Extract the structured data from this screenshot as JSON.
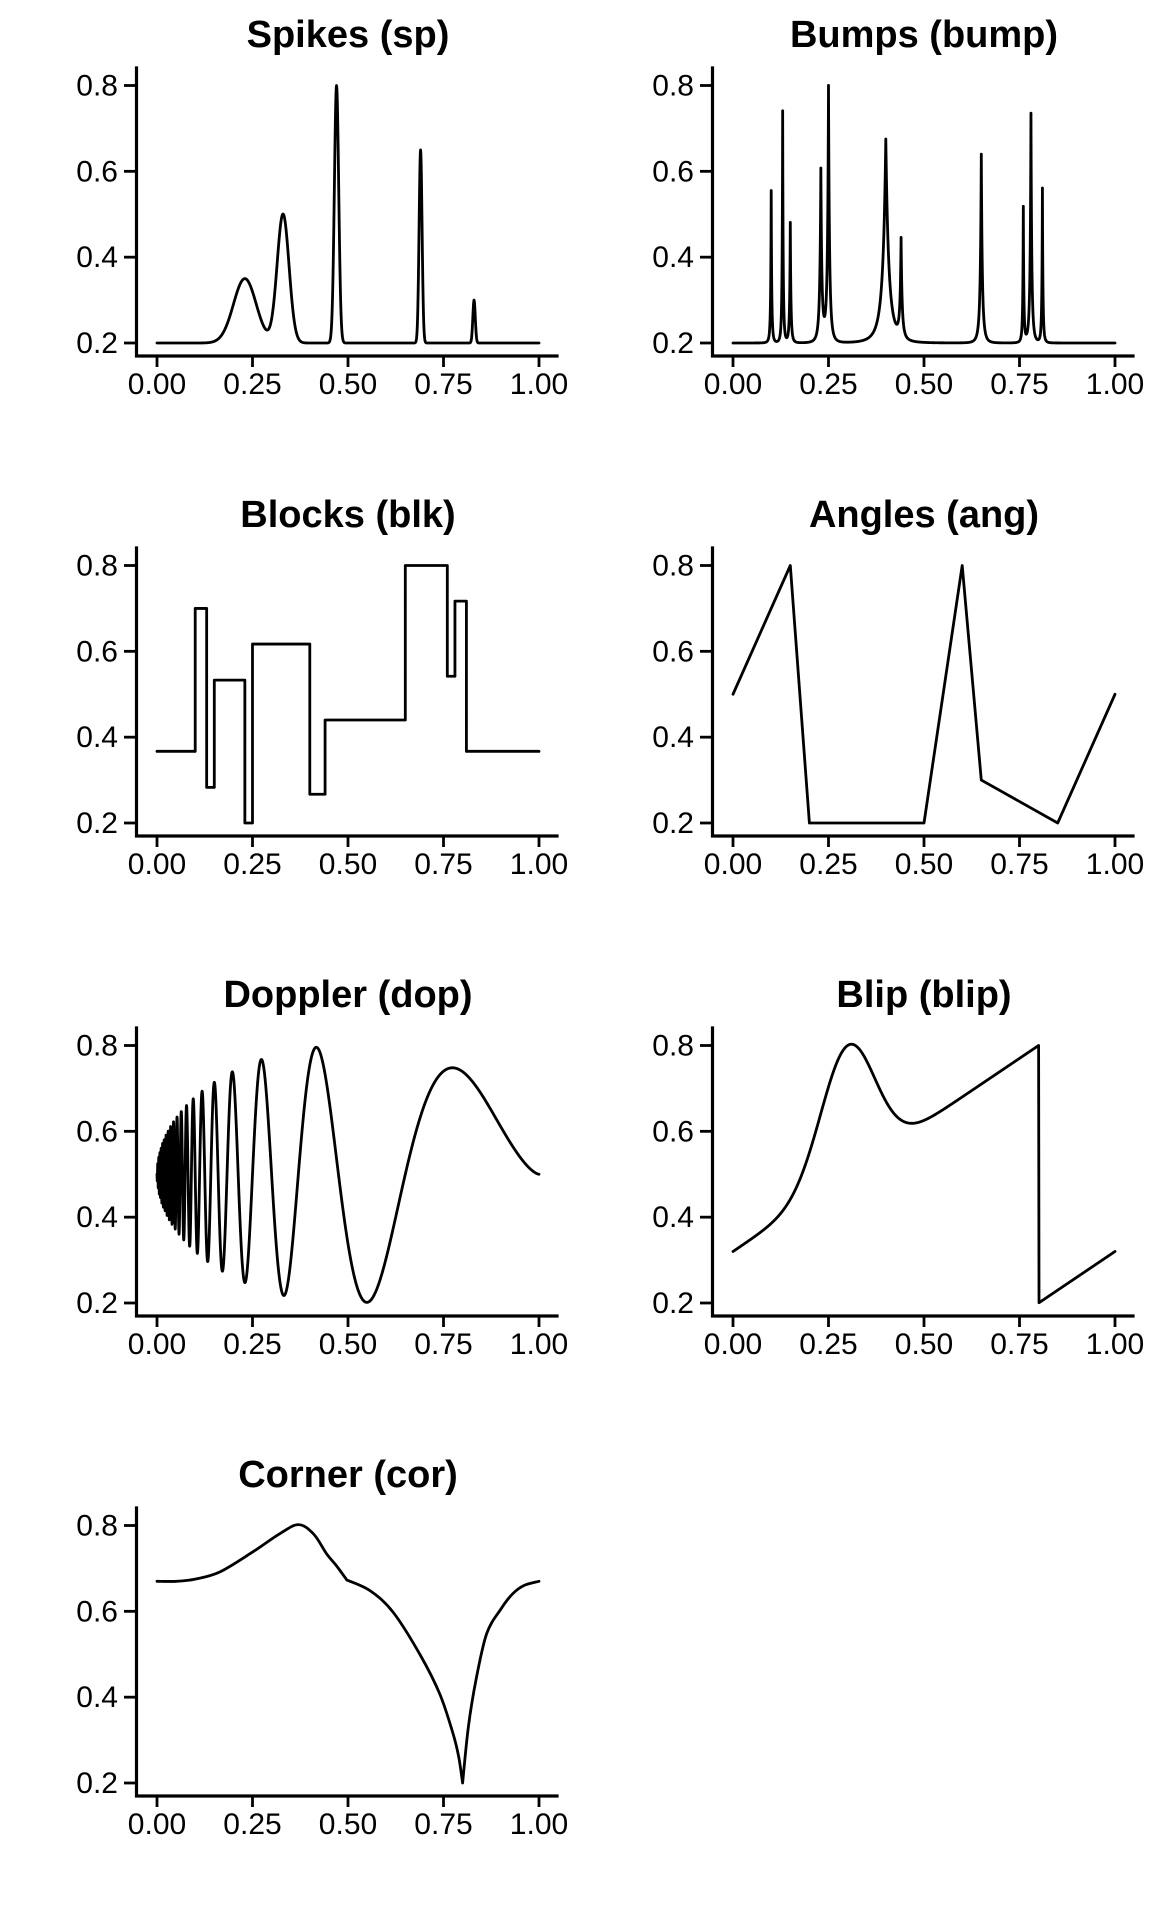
{
  "page": {
    "background": "#ffffff",
    "line_color": "#000000",
    "text_color": "#000000"
  },
  "axis": {
    "x_tick_labels": [
      "0.00",
      "0.25",
      "0.50",
      "0.75",
      "1.00"
    ],
    "x_tick_values": [
      0,
      0.25,
      0.5,
      0.75,
      1
    ],
    "y_tick_labels": [
      "0.2",
      "0.4",
      "0.6",
      "0.8"
    ],
    "y_tick_values": [
      0.2,
      0.4,
      0.6,
      0.8
    ],
    "xlim": [
      0,
      1
    ],
    "ylim": [
      0.2,
      0.8
    ],
    "grid": false,
    "legend": false
  },
  "chart_data": [
    {
      "type": "line",
      "title": "Spikes (sp)",
      "code": "sp",
      "generator": "gaussian_peaks",
      "baseline": 0.2,
      "centers": [
        0.23,
        0.33,
        0.47,
        0.69,
        0.83
      ],
      "amplitudes": [
        0.15,
        0.3,
        0.6,
        0.45,
        0.1
      ],
      "widths": [
        0.042,
        0.022,
        0.008,
        0.0055,
        0.0045
      ],
      "samples": 1400,
      "xlim": [
        0,
        1
      ],
      "ylim": [
        0.2,
        0.8
      ]
    },
    {
      "type": "line",
      "title": "Bumps (bump)",
      "code": "bump",
      "generator": "bump_peaks",
      "kernel_power": -4,
      "baseline": 0.2,
      "centers": [
        0.1,
        0.13,
        0.15,
        0.23,
        0.25,
        0.4,
        0.44,
        0.65,
        0.76,
        0.78,
        0.81
      ],
      "amplitudes": [
        0.355,
        0.54,
        0.28,
        0.4,
        0.595,
        0.475,
        0.23,
        0.44,
        0.315,
        0.535,
        0.36
      ],
      "widths": [
        0.005,
        0.005,
        0.006,
        0.01,
        0.01,
        0.03,
        0.01,
        0.01,
        0.005,
        0.008,
        0.005
      ],
      "samples": 2200,
      "xlim": [
        0,
        1
      ],
      "ylim": [
        0.2,
        0.8
      ]
    },
    {
      "type": "step",
      "title": "Blocks (blk)",
      "code": "blk",
      "generator": "steps",
      "boundaries": [
        0,
        0.1,
        0.13,
        0.15,
        0.23,
        0.25,
        0.4,
        0.44,
        0.65,
        0.76,
        0.78,
        0.81,
        1.0
      ],
      "levels": [
        0.367,
        0.7,
        0.283,
        0.533,
        0.2,
        0.617,
        0.267,
        0.44,
        0.8,
        0.542,
        0.717,
        0.367
      ],
      "xlim": [
        0,
        1
      ],
      "ylim": [
        0.2,
        0.8
      ]
    },
    {
      "type": "line",
      "title": "Angles (ang)",
      "code": "ang",
      "generator": "polyline",
      "points": [
        [
          0,
          0.5
        ],
        [
          0.15,
          0.8
        ],
        [
          0.2,
          0.2
        ],
        [
          0.5,
          0.2
        ],
        [
          0.6,
          0.8
        ],
        [
          0.65,
          0.3
        ],
        [
          0.85,
          0.2
        ],
        [
          1,
          0.5
        ]
      ],
      "xlim": [
        0,
        1
      ],
      "ylim": [
        0.2,
        0.8
      ]
    },
    {
      "type": "line",
      "title": "Doppler (dop)",
      "code": "dop",
      "generator": "doppler",
      "base": 0.5,
      "amp": 0.6,
      "eps": 0.05,
      "samples": 3000,
      "xlim": [
        0,
        1
      ],
      "ylim": [
        0.2,
        0.8
      ]
    },
    {
      "type": "line",
      "title": "Blip (blip)",
      "code": "blip",
      "generator": "blip",
      "intercept_left": 0.32,
      "intercept_right": -0.28,
      "slope": 0.6,
      "bump_amp": 0.3,
      "bump_center_left": 0.3,
      "bump_center_right": 1.3,
      "bump_decay": 100,
      "breakpoint": 0.8,
      "samples": 900,
      "xlim": [
        0,
        1
      ],
      "ylim": [
        0.2,
        0.8
      ]
    },
    {
      "type": "line",
      "title": "Corner (cor)",
      "code": "cor",
      "generator": "smooth_segments",
      "segments": [
        [
          [
            0,
            0.67
          ],
          [
            0.05,
            0.67
          ],
          [
            0.1,
            0.675
          ],
          [
            0.165,
            0.692
          ],
          [
            0.25,
            0.738
          ],
          [
            0.32,
            0.78
          ],
          [
            0.37,
            0.802
          ],
          [
            0.41,
            0.78
          ],
          [
            0.444,
            0.734
          ],
          [
            0.47,
            0.706
          ],
          [
            0.497,
            0.673
          ]
        ],
        [
          [
            0.497,
            0.673
          ],
          [
            0.558,
            0.648
          ],
          [
            0.618,
            0.598
          ],
          [
            0.688,
            0.5
          ],
          [
            0.74,
            0.408
          ],
          [
            0.775,
            0.315
          ],
          [
            0.79,
            0.26
          ],
          [
            0.8,
            0.2
          ]
        ],
        [
          [
            0.8,
            0.2
          ],
          [
            0.815,
            0.33
          ],
          [
            0.835,
            0.44
          ],
          [
            0.863,
            0.548
          ],
          [
            0.9,
            0.605
          ],
          [
            0.93,
            0.64
          ],
          [
            0.96,
            0.66
          ],
          [
            1.0,
            0.67
          ]
        ]
      ],
      "xlim": [
        0,
        1
      ],
      "ylim": [
        0.2,
        0.8
      ]
    }
  ]
}
